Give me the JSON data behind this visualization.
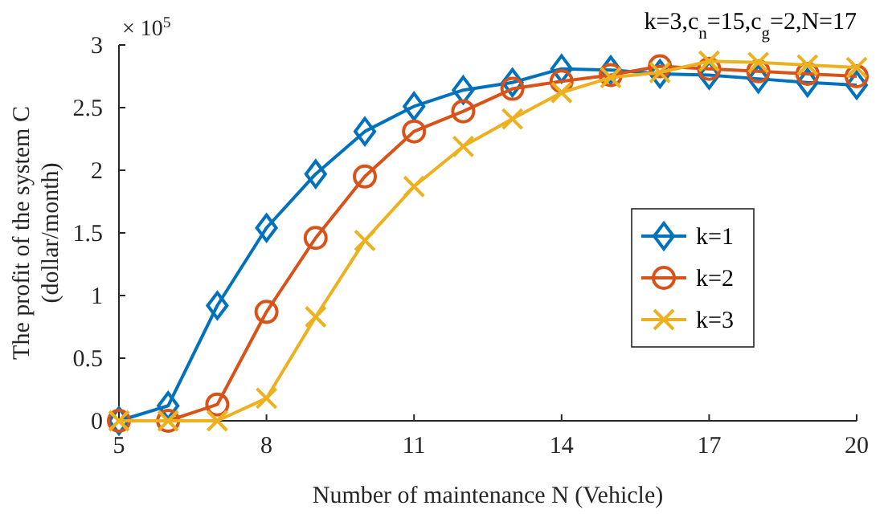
{
  "chart_data": {
    "type": "line",
    "xlabel": "Number of maintenance N (Vehicle)",
    "ylabel": "The profit of the system C (dollar/month)",
    "annotations": [
      "k=3,c$_{n}$=15,c$_{g}$=2,N=17",
      "× 10$^{5}$"
    ],
    "x": [
      5,
      6,
      7,
      8,
      9,
      10,
      11,
      12,
      13,
      14,
      15,
      16,
      17,
      18,
      19,
      20
    ],
    "series": [
      {
        "name": "k=1",
        "color": "#0072bd",
        "marker": "diamond",
        "values": [
          0,
          0.12,
          0.92,
          1.54,
          1.97,
          2.31,
          2.51,
          2.64,
          2.7,
          2.81,
          2.8,
          2.77,
          2.76,
          2.73,
          2.7,
          2.68
        ]
      },
      {
        "name": "k=2",
        "color": "#d95319",
        "marker": "circle",
        "values": [
          0,
          0,
          0.13,
          0.87,
          1.46,
          1.95,
          2.31,
          2.47,
          2.65,
          2.71,
          2.76,
          2.83,
          2.81,
          2.79,
          2.77,
          2.75
        ]
      },
      {
        "name": "k=3",
        "color": "#edb120",
        "marker": "cross",
        "values": [
          0,
          0,
          0,
          0.18,
          0.83,
          1.44,
          1.87,
          2.19,
          2.41,
          2.62,
          2.74,
          2.78,
          2.87,
          2.86,
          2.84,
          2.82
        ]
      }
    ],
    "xlim": [
      5,
      20
    ],
    "xticks": [
      5,
      8,
      11,
      14,
      17,
      20
    ],
    "ylim": [
      0,
      3
    ],
    "yticks": [
      0,
      0.5,
      1,
      1.5,
      2,
      2.5,
      3
    ],
    "legend": "right",
    "grid": false
  }
}
